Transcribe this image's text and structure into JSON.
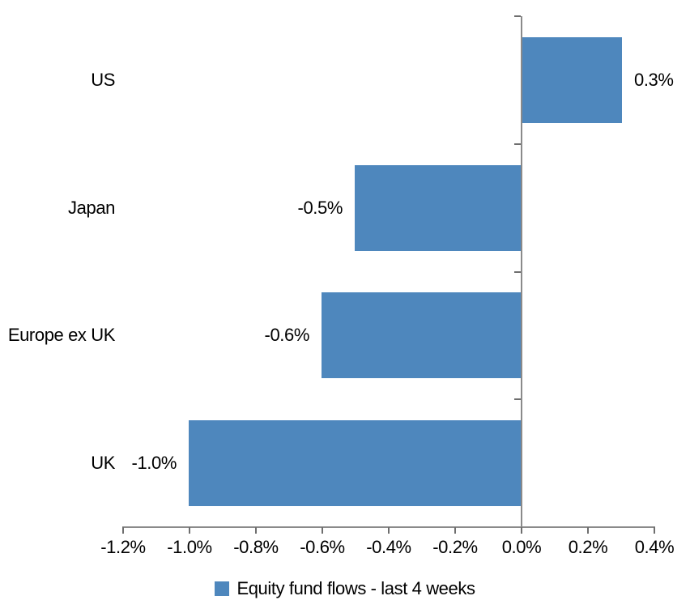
{
  "chart_data": {
    "type": "bar",
    "orientation": "horizontal",
    "title": "",
    "categories": [
      "US",
      "Japan",
      "Europe ex UK",
      "UK"
    ],
    "values": [
      0.3,
      -0.5,
      -0.6,
      -1.0
    ],
    "data_labels": [
      "0.3%",
      "-0.5%",
      "-0.6%",
      "-1.0%"
    ],
    "series": [
      {
        "name": "Equity fund flows - last 4 weeks",
        "values": [
          0.3,
          -0.5,
          -0.6,
          -1.0
        ]
      }
    ],
    "xlabel": "",
    "ylabel": "",
    "xlim": [
      -1.2,
      0.4
    ],
    "x_ticks": [
      {
        "label": "-1.2%",
        "value": -1.2
      },
      {
        "label": "-1.0%",
        "value": -1.0
      },
      {
        "label": "-0.8%",
        "value": -0.8
      },
      {
        "label": "-0.6%",
        "value": -0.6
      },
      {
        "label": "-0.4%",
        "value": -0.4
      },
      {
        "label": "-0.2%",
        "value": -0.2
      },
      {
        "label": "0.0%",
        "value": 0.0
      },
      {
        "label": "0.2%",
        "value": 0.2
      },
      {
        "label": "0.4%",
        "value": 0.4
      }
    ],
    "grid": false,
    "legend": {
      "position": "bottom",
      "label": "Equity fund flows - last 4 weeks"
    },
    "colors": {
      "bar": "#4E87BD",
      "axis_line": "#8A8A8A",
      "tick": "#6E6E6E",
      "text": "#000000",
      "background": "#FFFFFF"
    }
  }
}
